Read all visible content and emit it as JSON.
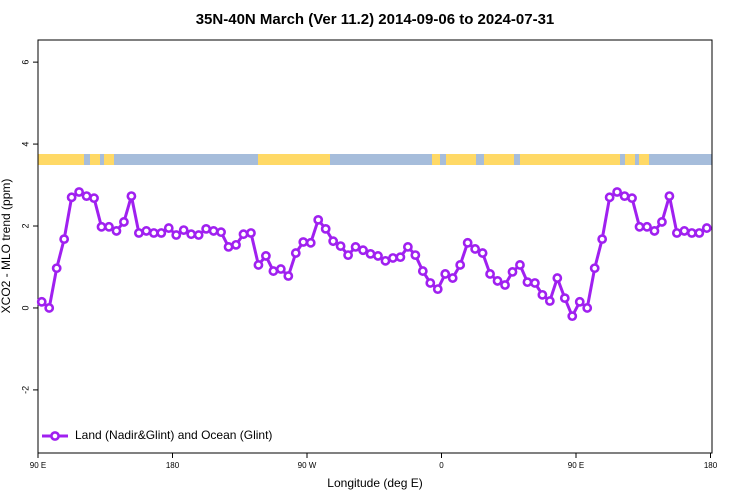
{
  "chart_data": {
    "type": "line",
    "title": "35N-40N March (Ver 11.2)   2014-09-06 to 2024-07-31",
    "xlabel": "Longitude (deg E)",
    "ylabel": "XCO2 - MLO trend (ppm)",
    "x": [
      92.5,
      97.5,
      102.5,
      107.5,
      112.5,
      117.5,
      122.5,
      127.5,
      132.5,
      137.5,
      142.5,
      147.5,
      152.5,
      157.5,
      162.5,
      167.5,
      172.5,
      177.5,
      182.5,
      187.5,
      192.5,
      197.5,
      202.5,
      207.5,
      212.5,
      217.5,
      222.5,
      227.5,
      232.5,
      237.5,
      242.5,
      247.5,
      252.5,
      257.5,
      262.5,
      267.5,
      272.5,
      277.5,
      282.5,
      287.5,
      292.5,
      297.5,
      302.5,
      307.5,
      312.5,
      317.5,
      322.5,
      327.5,
      332.5,
      337.5,
      342.5,
      347.5,
      352.5,
      357.5,
      362.5,
      367.5,
      372.5,
      377.5,
      382.5,
      387.5,
      392.5,
      397.5,
      402.5,
      407.5,
      412.5,
      417.5,
      422.5,
      427.5,
      432.5,
      437.5,
      442.5,
      447.5,
      452.5,
      457.5,
      462.5,
      467.5,
      472.5,
      477.5,
      482.5,
      487.5,
      492.5,
      497.5,
      502.5,
      507.5,
      512.5,
      517.5,
      522.5,
      527.5,
      532.5,
      537.5
    ],
    "series": [
      {
        "name": "Land (Nadir&Glint) and Ocean (Glint)",
        "color": "#a020f0",
        "values": [
          0.15,
          0,
          0.97,
          1.68,
          2.7,
          2.83,
          2.73,
          2.68,
          1.98,
          1.98,
          1.88,
          2.1,
          2.73,
          1.83,
          1.88,
          1.83,
          1.83,
          1.95,
          1.78,
          1.9,
          1.8,
          1.78,
          1.93,
          1.88,
          1.85,
          1.49,
          1.54,
          1.8,
          1.83,
          1.05,
          1.27,
          0.9,
          0.95,
          0.78,
          1.34,
          1.61,
          1.59,
          2.15,
          1.93,
          1.63,
          1.51,
          1.29,
          1.49,
          1.41,
          1.32,
          1.27,
          1.15,
          1.22,
          1.24,
          1.49,
          1.29,
          0.9,
          0.61,
          0.46,
          0.83,
          0.73,
          1.05,
          1.59,
          1.44,
          1.34,
          0.83,
          0.66,
          0.56,
          0.88,
          1.05,
          0.63,
          0.61,
          0.32,
          0.17,
          0.73,
          0.24,
          -0.2,
          0.15,
          0,
          0.97,
          1.68,
          2.7,
          2.83,
          2.73,
          2.68,
          1.98,
          1.98,
          1.88,
          2.1,
          2.73,
          1.83,
          1.88,
          1.83,
          1.83,
          1.95
        ]
      }
    ],
    "xlim": [
      90,
      541
    ],
    "xticks": [
      {
        "value": 90,
        "label": "90 E"
      },
      180,
      {
        "value": 270,
        "label": "90 W"
      },
      {
        "value": 360,
        "label": "0"
      },
      {
        "value": 450,
        "label": "90 E"
      },
      {
        "value": 540,
        "label": "180"
      }
    ],
    "ylim": [
      -3.54,
      6.54
    ],
    "yticks": [
      -2,
      0,
      2,
      4,
      6
    ],
    "legend": "bottom-left"
  }
}
